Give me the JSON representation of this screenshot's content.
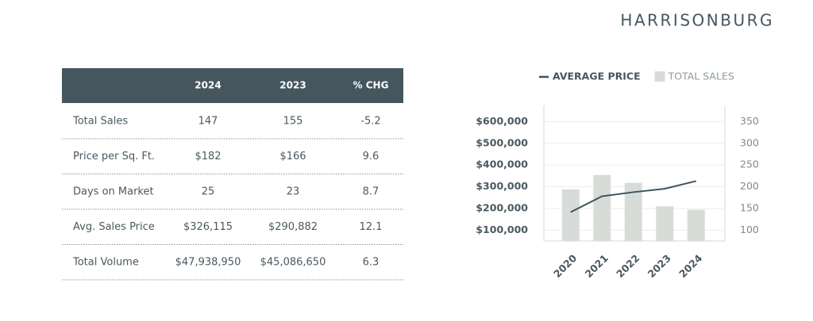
{
  "header": {
    "title": "HARRISONBURG"
  },
  "table": {
    "columns": [
      "2024",
      "2023",
      "% CHG"
    ],
    "rows": [
      [
        "Total Sales",
        "147",
        "155",
        "-5.2"
      ],
      [
        "Price per Sq. Ft.",
        "$182",
        "$166",
        "9.6"
      ],
      [
        "Days on Market",
        "25",
        "23",
        "8.7"
      ],
      [
        "Avg. Sales Price",
        "$326,115",
        "$290,882",
        "12.1"
      ],
      [
        "Total Volume",
        "$47,938,950",
        "$45,086,650",
        "6.3"
      ]
    ]
  },
  "chart_data": {
    "type": "combo",
    "categories": [
      "2020",
      "2021",
      "2022",
      "2023",
      "2024"
    ],
    "series": [
      {
        "name": "AVERAGE PRICE",
        "kind": "line",
        "color": "#3f535e",
        "values": [
          183000,
          256000,
          275000,
          290882,
          326115
        ]
      },
      {
        "name": "TOTAL SALES",
        "kind": "bar",
        "axis": "y2",
        "color": "#d8dcd9",
        "values": [
          194,
          227,
          209,
          155,
          147
        ]
      }
    ],
    "ylim": [
      50000,
      675000
    ],
    "yticks": [
      {
        "value": 100000,
        "label": "$100,000"
      },
      {
        "value": 200000,
        "label": "$200,000"
      },
      {
        "value": 300000,
        "label": "$300,000"
      },
      {
        "value": 400000,
        "label": "$400,000"
      },
      {
        "value": 500000,
        "label": "$500,000"
      },
      {
        "value": 600000,
        "label": "$600,000"
      }
    ],
    "y2lim": [
      75,
      387.5
    ],
    "y2ticks": [
      100,
      150,
      200,
      250,
      300,
      350
    ],
    "grid": true
  }
}
